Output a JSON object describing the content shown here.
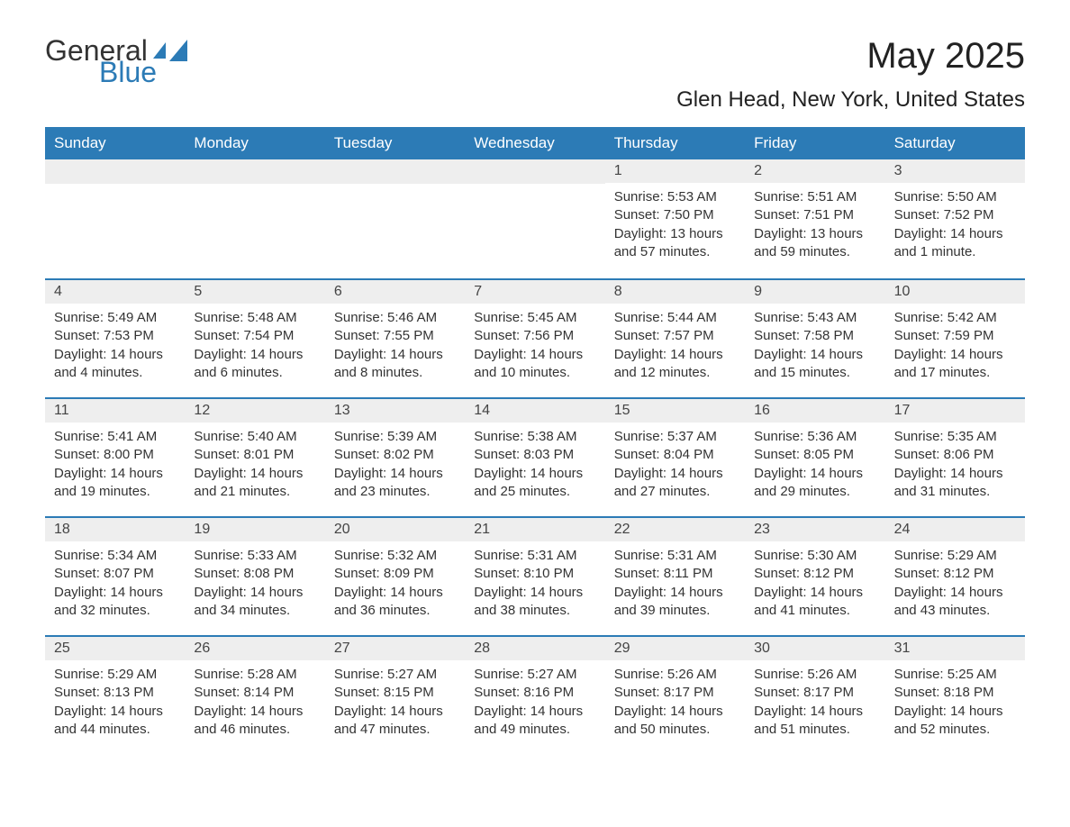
{
  "brand": {
    "part1": "General",
    "part2": "Blue"
  },
  "title": "May 2025",
  "location": "Glen Head, New York, United States",
  "colors": {
    "header_bg": "#2c7bb6",
    "header_text": "#ffffff",
    "daynum_bg": "#eeeeee",
    "text": "#333333",
    "border": "#2c7bb6"
  },
  "weekdays": [
    "Sunday",
    "Monday",
    "Tuesday",
    "Wednesday",
    "Thursday",
    "Friday",
    "Saturday"
  ],
  "weeks": [
    [
      null,
      null,
      null,
      null,
      {
        "n": "1",
        "sr": "5:53 AM",
        "ss": "7:50 PM",
        "dl": "13 hours and 57 minutes."
      },
      {
        "n": "2",
        "sr": "5:51 AM",
        "ss": "7:51 PM",
        "dl": "13 hours and 59 minutes."
      },
      {
        "n": "3",
        "sr": "5:50 AM",
        "ss": "7:52 PM",
        "dl": "14 hours and 1 minute."
      }
    ],
    [
      {
        "n": "4",
        "sr": "5:49 AM",
        "ss": "7:53 PM",
        "dl": "14 hours and 4 minutes."
      },
      {
        "n": "5",
        "sr": "5:48 AM",
        "ss": "7:54 PM",
        "dl": "14 hours and 6 minutes."
      },
      {
        "n": "6",
        "sr": "5:46 AM",
        "ss": "7:55 PM",
        "dl": "14 hours and 8 minutes."
      },
      {
        "n": "7",
        "sr": "5:45 AM",
        "ss": "7:56 PM",
        "dl": "14 hours and 10 minutes."
      },
      {
        "n": "8",
        "sr": "5:44 AM",
        "ss": "7:57 PM",
        "dl": "14 hours and 12 minutes."
      },
      {
        "n": "9",
        "sr": "5:43 AM",
        "ss": "7:58 PM",
        "dl": "14 hours and 15 minutes."
      },
      {
        "n": "10",
        "sr": "5:42 AM",
        "ss": "7:59 PM",
        "dl": "14 hours and 17 minutes."
      }
    ],
    [
      {
        "n": "11",
        "sr": "5:41 AM",
        "ss": "8:00 PM",
        "dl": "14 hours and 19 minutes."
      },
      {
        "n": "12",
        "sr": "5:40 AM",
        "ss": "8:01 PM",
        "dl": "14 hours and 21 minutes."
      },
      {
        "n": "13",
        "sr": "5:39 AM",
        "ss": "8:02 PM",
        "dl": "14 hours and 23 minutes."
      },
      {
        "n": "14",
        "sr": "5:38 AM",
        "ss": "8:03 PM",
        "dl": "14 hours and 25 minutes."
      },
      {
        "n": "15",
        "sr": "5:37 AM",
        "ss": "8:04 PM",
        "dl": "14 hours and 27 minutes."
      },
      {
        "n": "16",
        "sr": "5:36 AM",
        "ss": "8:05 PM",
        "dl": "14 hours and 29 minutes."
      },
      {
        "n": "17",
        "sr": "5:35 AM",
        "ss": "8:06 PM",
        "dl": "14 hours and 31 minutes."
      }
    ],
    [
      {
        "n": "18",
        "sr": "5:34 AM",
        "ss": "8:07 PM",
        "dl": "14 hours and 32 minutes."
      },
      {
        "n": "19",
        "sr": "5:33 AM",
        "ss": "8:08 PM",
        "dl": "14 hours and 34 minutes."
      },
      {
        "n": "20",
        "sr": "5:32 AM",
        "ss": "8:09 PM",
        "dl": "14 hours and 36 minutes."
      },
      {
        "n": "21",
        "sr": "5:31 AM",
        "ss": "8:10 PM",
        "dl": "14 hours and 38 minutes."
      },
      {
        "n": "22",
        "sr": "5:31 AM",
        "ss": "8:11 PM",
        "dl": "14 hours and 39 minutes."
      },
      {
        "n": "23",
        "sr": "5:30 AM",
        "ss": "8:12 PM",
        "dl": "14 hours and 41 minutes."
      },
      {
        "n": "24",
        "sr": "5:29 AM",
        "ss": "8:12 PM",
        "dl": "14 hours and 43 minutes."
      }
    ],
    [
      {
        "n": "25",
        "sr": "5:29 AM",
        "ss": "8:13 PM",
        "dl": "14 hours and 44 minutes."
      },
      {
        "n": "26",
        "sr": "5:28 AM",
        "ss": "8:14 PM",
        "dl": "14 hours and 46 minutes."
      },
      {
        "n": "27",
        "sr": "5:27 AM",
        "ss": "8:15 PM",
        "dl": "14 hours and 47 minutes."
      },
      {
        "n": "28",
        "sr": "5:27 AM",
        "ss": "8:16 PM",
        "dl": "14 hours and 49 minutes."
      },
      {
        "n": "29",
        "sr": "5:26 AM",
        "ss": "8:17 PM",
        "dl": "14 hours and 50 minutes."
      },
      {
        "n": "30",
        "sr": "5:26 AM",
        "ss": "8:17 PM",
        "dl": "14 hours and 51 minutes."
      },
      {
        "n": "31",
        "sr": "5:25 AM",
        "ss": "8:18 PM",
        "dl": "14 hours and 52 minutes."
      }
    ]
  ],
  "labels": {
    "sunrise": "Sunrise: ",
    "sunset": "Sunset: ",
    "daylight": "Daylight: "
  }
}
